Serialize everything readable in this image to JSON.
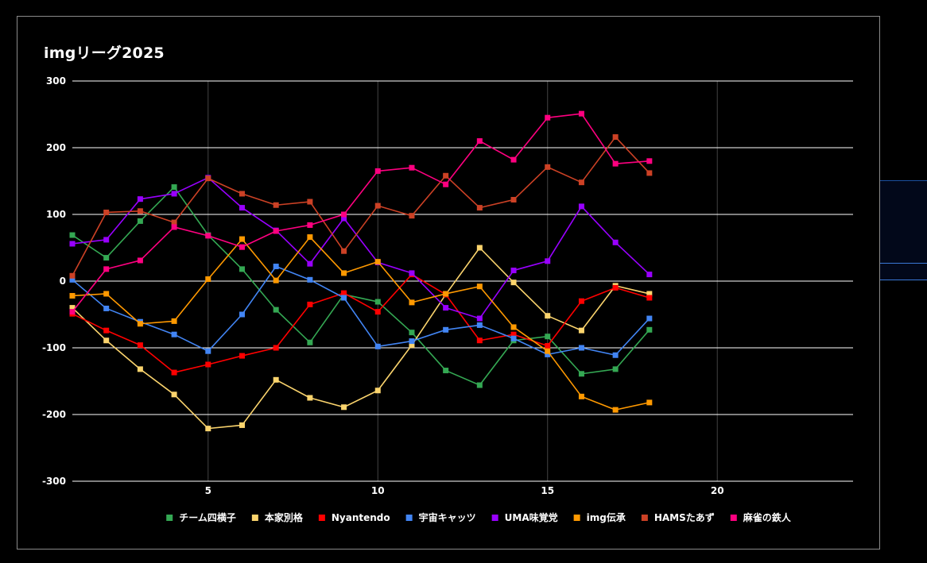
{
  "colors": {
    "background": "#000000",
    "grid_major": "#ffffff",
    "grid_minor": "#444444",
    "text": "#ffffff"
  },
  "chart_data": {
    "type": "line",
    "title": "imgリーグ2025",
    "xlabel": "",
    "ylabel": "",
    "xlim": [
      1,
      24
    ],
    "ylim": [
      -300,
      300
    ],
    "x_ticks": [
      5,
      10,
      15,
      20
    ],
    "y_ticks": [
      -300,
      -200,
      -100,
      0,
      100,
      200,
      300
    ],
    "grid": true,
    "legend_position": "bottom",
    "x": [
      1,
      2,
      3,
      4,
      5,
      6,
      7,
      8,
      9,
      10,
      11,
      12,
      13,
      14,
      15,
      16,
      17,
      18
    ],
    "series": [
      {
        "name": "チーム四横子",
        "color": "#34a853",
        "values": [
          69,
          35,
          90,
          141,
          69,
          18,
          -43,
          -92,
          -20,
          -31,
          -77,
          -134,
          -156,
          -89,
          -83,
          -139,
          -132,
          -73
        ]
      },
      {
        "name": "本家別格",
        "color": "#fbd46d",
        "values": [
          -40,
          -89,
          -132,
          -170,
          -221,
          -216,
          -148,
          -175,
          -189,
          -164,
          -96,
          -20,
          50,
          -2,
          -52,
          -74,
          -7,
          -19
        ]
      },
      {
        "name": "Nyantendo",
        "color": "#ff0000",
        "values": [
          -49,
          -74,
          -96,
          -137,
          -125,
          -112,
          -100,
          -35,
          -18,
          -46,
          10,
          -20,
          -89,
          -80,
          -97,
          -30,
          -10,
          -25
        ]
      },
      {
        "name": "宇宙キャッツ",
        "color": "#4285f4",
        "values": [
          2,
          -41,
          -61,
          -80,
          -105,
          -50,
          22,
          2,
          -25,
          -98,
          -90,
          -73,
          -66,
          -86,
          -110,
          -100,
          -111,
          -56
        ]
      },
      {
        "name": "UMA味覚党",
        "color": "#9900ff",
        "values": [
          56,
          62,
          123,
          131,
          155,
          110,
          76,
          26,
          94,
          28,
          12,
          -40,
          -56,
          16,
          30,
          112,
          58,
          10
        ]
      },
      {
        "name": "img伝承",
        "color": "#ff9900",
        "values": [
          -22,
          -19,
          -64,
          -60,
          3,
          63,
          1,
          66,
          12,
          29,
          -32,
          -19,
          -8,
          -69,
          -105,
          -173,
          -193,
          -182
        ]
      },
      {
        "name": "HAMSたあず",
        "color": "#cc4125",
        "values": [
          8,
          103,
          105,
          88,
          154,
          131,
          114,
          119,
          45,
          113,
          98,
          158,
          110,
          122,
          171,
          148,
          216,
          162
        ]
      },
      {
        "name": "麻雀の鉄人",
        "color": "#ff0080",
        "values": [
          -46,
          18,
          31,
          81,
          68,
          51,
          75,
          84,
          100,
          165,
          170,
          145,
          210,
          182,
          245,
          251,
          176,
          180
        ]
      }
    ]
  }
}
